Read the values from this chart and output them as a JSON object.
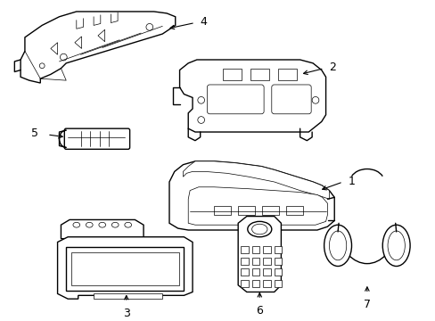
{
  "background_color": "#ffffff",
  "line_color": "#000000",
  "lw": 1.0,
  "tlw": 0.5,
  "fig_width": 4.89,
  "fig_height": 3.6,
  "dpi": 100
}
